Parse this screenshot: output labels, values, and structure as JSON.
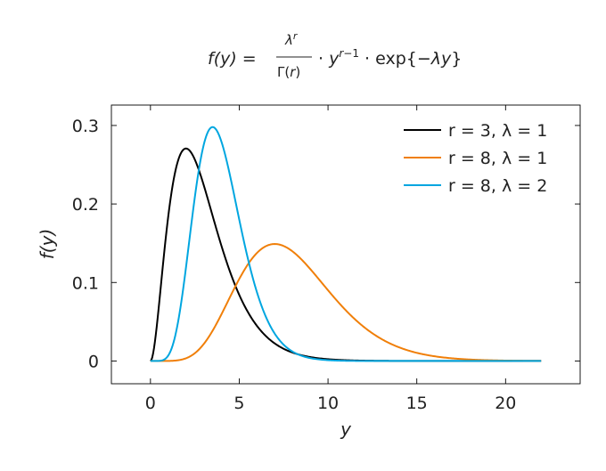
{
  "chart_data": {
    "type": "line",
    "title": {
      "lhs": "f(y) =",
      "numerator": "λ^r",
      "denominator": "Γ(r)",
      "rest": "· y^{r−1} · exp{−λy}"
    },
    "xlabel": "y",
    "ylabel": "f(y)",
    "xlim": [
      -2.2,
      24.2
    ],
    "ylim": [
      -0.029,
      0.326
    ],
    "xticks": [
      0,
      5,
      10,
      15,
      20
    ],
    "yticks": [
      0,
      0.1,
      0.2,
      0.3
    ],
    "ytick_labels": [
      "0",
      "0.1",
      "0.2",
      "0.3"
    ],
    "grid": false,
    "legend_position": "top-right",
    "series": [
      {
        "name": "r = 3, λ = 1",
        "r": 3,
        "lambda": 1,
        "color": "#000000",
        "x": [
          0,
          0.5,
          1,
          1.5,
          2,
          2.5,
          3,
          4,
          5,
          6,
          7,
          8,
          9,
          10,
          12,
          14,
          16,
          18,
          20,
          22
        ],
        "y": [
          0,
          0.0758,
          0.1839,
          0.251,
          0.2707,
          0.2565,
          0.224,
          0.1465,
          0.0842,
          0.0446,
          0.0223,
          0.0107,
          0.005,
          0.0023,
          0.0004,
          0.0001,
          0,
          0,
          0,
          0
        ]
      },
      {
        "name": "r = 8, λ = 1",
        "r": 8,
        "lambda": 1,
        "color": "#f07f09",
        "x": [
          0,
          1,
          2,
          3,
          4,
          5,
          6,
          7,
          8,
          9,
          10,
          11,
          12,
          13,
          14,
          15,
          16,
          17,
          18,
          19,
          20,
          21,
          22
        ],
        "y": [
          0,
          0.0001,
          0.0034,
          0.0216,
          0.0595,
          0.1044,
          0.1377,
          0.149,
          0.1396,
          0.1171,
          0.0901,
          0.0646,
          0.0437,
          0.0281,
          0.0174,
          0.0104,
          0.006,
          0.0034,
          0.0019,
          0.001,
          0.0005,
          0.0003,
          0.0001
        ]
      },
      {
        "name": "r = 8, λ = 2",
        "r": 8,
        "lambda": 2,
        "color": "#00a6e0",
        "x": [
          0,
          0.5,
          1,
          1.5,
          2,
          2.5,
          3,
          3.5,
          4,
          4.5,
          5,
          5.5,
          6,
          7,
          8,
          9,
          10,
          11,
          12,
          14,
          16,
          18,
          20,
          22
        ],
        "y": [
          0,
          0.0002,
          0.0068,
          0.0432,
          0.119,
          0.2087,
          0.2754,
          0.2981,
          0.2791,
          0.2335,
          0.1792,
          0.1285,
          0.0874,
          0.0353,
          0.0124,
          0.0039,
          0.0011,
          0.0003,
          0.0001,
          0,
          0,
          0,
          0,
          0
        ]
      }
    ]
  }
}
